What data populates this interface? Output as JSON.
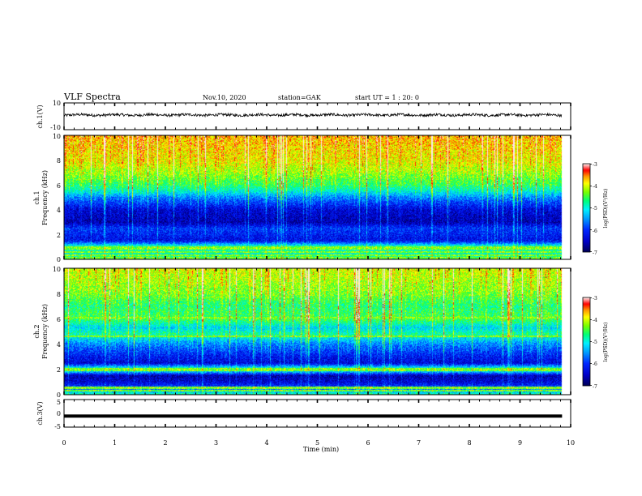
{
  "header": {
    "title": "VLF Spectra",
    "date": "Nov.10, 2020",
    "station": "station=GAK",
    "start": "start UT = 1 : 20: 0"
  },
  "colors": {
    "waveform": "#000000",
    "spectrogram_scale": [
      "#000066",
      "#0000ff",
      "#00a0ff",
      "#00ffff",
      "#00ff66",
      "#66ff00",
      "#ffff00",
      "#ff9900",
      "#ff0000",
      "#ffcccc",
      "#ffffff"
    ]
  },
  "chart_data": [
    {
      "type": "line",
      "name": "ch1-waveform",
      "ylabel": "ch.1(V)",
      "ylim": [
        -10,
        10
      ],
      "yticks": [
        "10",
        "-10"
      ],
      "x_range_min": [
        0,
        9.83
      ],
      "baseline_value": 1.0,
      "noise_amplitude": 1.0
    },
    {
      "type": "heatmap",
      "name": "ch1-spectrogram",
      "ylabel_channel": "ch.1",
      "ylabel": "Frequency (kHz)",
      "ylim": [
        0,
        10
      ],
      "yticks": [
        "0",
        "2",
        "4",
        "6",
        "8",
        "10"
      ],
      "x_range_min": [
        0,
        9.83
      ],
      "band_levels_kHz_to_log": [
        [
          0.0,
          -4.6
        ],
        [
          0.5,
          -5.0
        ],
        [
          1.0,
          -4.7
        ],
        [
          1.5,
          -6.3
        ],
        [
          2.5,
          -6.0
        ],
        [
          3.0,
          -6.6
        ],
        [
          4.0,
          -6.4
        ],
        [
          5.0,
          -5.6
        ],
        [
          5.5,
          -5.0
        ],
        [
          6.0,
          -4.6
        ],
        [
          7.0,
          -4.2
        ],
        [
          8.0,
          -3.9
        ],
        [
          10.0,
          -3.7
        ]
      ],
      "strong_lines_kHz": [
        0.15,
        0.35,
        0.6,
        0.85,
        1.0
      ],
      "colorbar": {
        "label": "log(PSD)(V²/Hz)",
        "range": [
          -7,
          -3
        ],
        "ticks": [
          "-3",
          "-4",
          "-5",
          "-6",
          "-7"
        ]
      }
    },
    {
      "type": "heatmap",
      "name": "ch2-spectrogram",
      "ylabel_channel": "ch.2",
      "ylabel": "Frequency (kHz)",
      "ylim": [
        0,
        10
      ],
      "yticks": [
        "0",
        "2",
        "4",
        "6",
        "8",
        "10"
      ],
      "x_range_min": [
        0,
        9.83
      ],
      "band_levels_kHz_to_log": [
        [
          0.0,
          -4.8
        ],
        [
          0.5,
          -5.8
        ],
        [
          1.0,
          -6.4
        ],
        [
          1.5,
          -6.6
        ],
        [
          2.0,
          -4.6
        ],
        [
          2.5,
          -6.4
        ],
        [
          3.0,
          -6.2
        ],
        [
          4.0,
          -5.6
        ],
        [
          4.8,
          -4.8
        ],
        [
          5.3,
          -5.2
        ],
        [
          6.0,
          -4.5
        ],
        [
          7.0,
          -4.7
        ],
        [
          8.0,
          -4.3
        ],
        [
          10.0,
          -4.0
        ]
      ],
      "strong_lines_kHz": [
        0.3,
        0.55,
        1.95,
        2.05,
        4.6,
        6.1
      ],
      "colorbar": {
        "label": "log(PSD)(V²/Hz)",
        "range": [
          -7,
          -3
        ],
        "ticks": [
          "-3",
          "-4",
          "-5",
          "-6",
          "-7"
        ]
      }
    },
    {
      "type": "line",
      "name": "ch3-waveform",
      "ylabel": "ch.3(V)",
      "ylim": [
        -5,
        5
      ],
      "yticks": [
        "5",
        "0",
        "-5"
      ],
      "x_range_min": [
        0,
        9.83
      ],
      "baseline_value": -1.0
    }
  ],
  "xaxis": {
    "label": "Time (min)",
    "range": [
      0,
      10
    ],
    "ticks": [
      "0",
      "1",
      "2",
      "3",
      "4",
      "5",
      "6",
      "7",
      "8",
      "9",
      "10"
    ]
  }
}
